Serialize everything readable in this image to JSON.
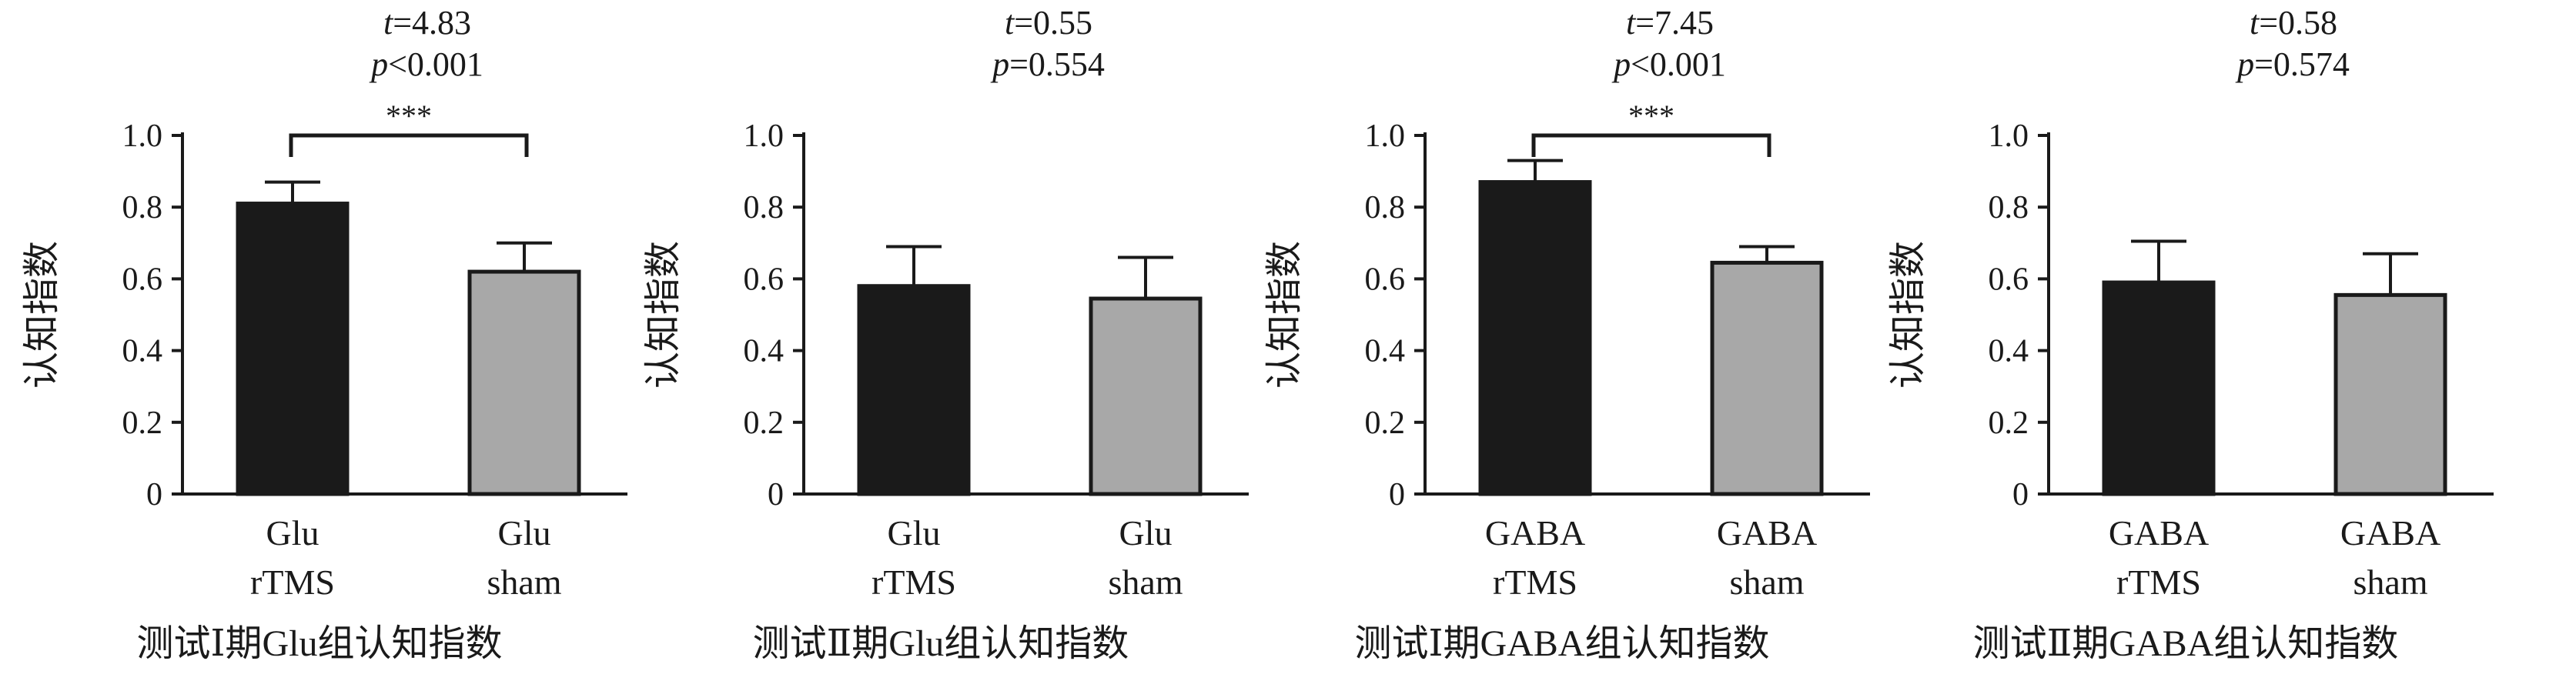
{
  "chart_data": [
    {
      "type": "bar",
      "stat": {
        "t": "t=4.83",
        "p": "p<0.001"
      },
      "ylabel": "认知指数",
      "ylim": [
        0,
        1.0
      ],
      "yticks": [
        "0",
        "0.2",
        "0.4",
        "0.6",
        "0.8",
        "1.0"
      ],
      "categories": [
        [
          "Glu",
          "rTMS"
        ],
        [
          "Glu",
          "sham"
        ]
      ],
      "values": [
        0.81,
        0.62
      ],
      "errors": [
        0.06,
        0.08
      ],
      "colors": [
        "#1a1a1a",
        "#a8a8a8"
      ],
      "significance": "***",
      "title": "测试Ⅰ期Glu组认知指数"
    },
    {
      "type": "bar",
      "stat": {
        "t": "t=0.55",
        "p": "p=0.554"
      },
      "ylabel": "认知指数",
      "ylim": [
        0,
        1.0
      ],
      "yticks": [
        "0",
        "0.2",
        "0.4",
        "0.6",
        "0.8",
        "1.0"
      ],
      "categories": [
        [
          "Glu",
          "rTMS"
        ],
        [
          "Glu",
          "sham"
        ]
      ],
      "values": [
        0.58,
        0.545
      ],
      "errors": [
        0.11,
        0.115
      ],
      "colors": [
        "#1a1a1a",
        "#a8a8a8"
      ],
      "significance": "",
      "title": "测试Ⅱ期Glu组认知指数"
    },
    {
      "type": "bar",
      "stat": {
        "t": "t=7.45",
        "p": "p<0.001"
      },
      "ylabel": "认知指数",
      "ylim": [
        0,
        1.0
      ],
      "yticks": [
        "0",
        "0.2",
        "0.4",
        "0.6",
        "0.8",
        "1.0"
      ],
      "categories": [
        [
          "GABA",
          "rTMS"
        ],
        [
          "GABA",
          "sham"
        ]
      ],
      "values": [
        0.87,
        0.645
      ],
      "errors": [
        0.06,
        0.045
      ],
      "colors": [
        "#1a1a1a",
        "#a8a8a8"
      ],
      "significance": "***",
      "title": "测试Ⅰ期GABA组认知指数"
    },
    {
      "type": "bar",
      "stat": {
        "t": "t=0.58",
        "p": "p=0.574"
      },
      "ylabel": "认知指数",
      "ylim": [
        0,
        1.0
      ],
      "yticks": [
        "0",
        "0.2",
        "0.4",
        "0.6",
        "0.8",
        "1.0"
      ],
      "categories": [
        [
          "GABA",
          "rTMS"
        ],
        [
          "GABA",
          "sham"
        ]
      ],
      "values": [
        0.59,
        0.555
      ],
      "errors": [
        0.115,
        0.115
      ],
      "colors": [
        "#1a1a1a",
        "#a8a8a8"
      ],
      "significance": "",
      "title": "测试Ⅱ期GABA组认知指数"
    }
  ]
}
